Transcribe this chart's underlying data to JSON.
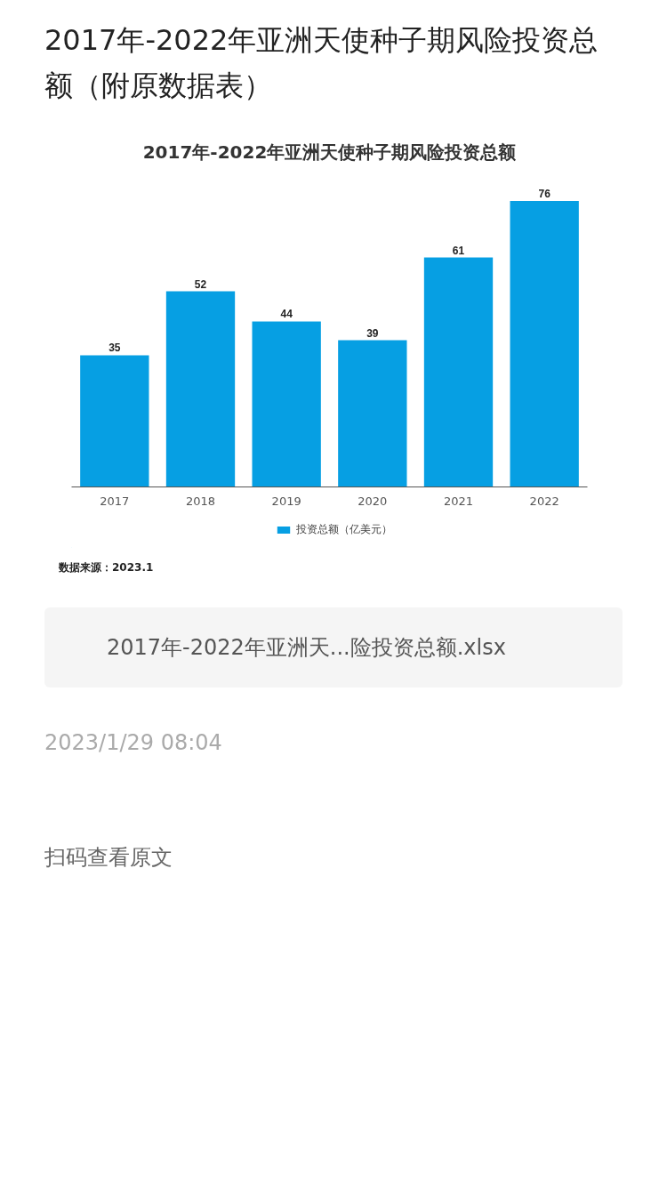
{
  "chart_data": {
    "type": "bar",
    "title": "2017年-2022年亚洲天使种子期风险投资总额（附原数据表）",
    "subtitle": "2017年-2022年亚洲天使种子期风险投资总额",
    "categories": [
      "2017",
      "2018",
      "2019",
      "2020",
      "2021",
      "2022"
    ],
    "series": [
      {
        "name": "投资总额（亿美元）",
        "color": "#069fe3",
        "values": [
          35,
          52,
          44,
          39,
          61,
          76
        ]
      }
    ],
    "data_labels": true,
    "legend": "bottom",
    "grid": false,
    "annotations": [
      "数据来源：2023.1",
      "2017年-2022年亚洲天...险投资总额.xlsx",
      "2023/1/29 08:04",
      "扫码查看原文"
    ]
  }
}
